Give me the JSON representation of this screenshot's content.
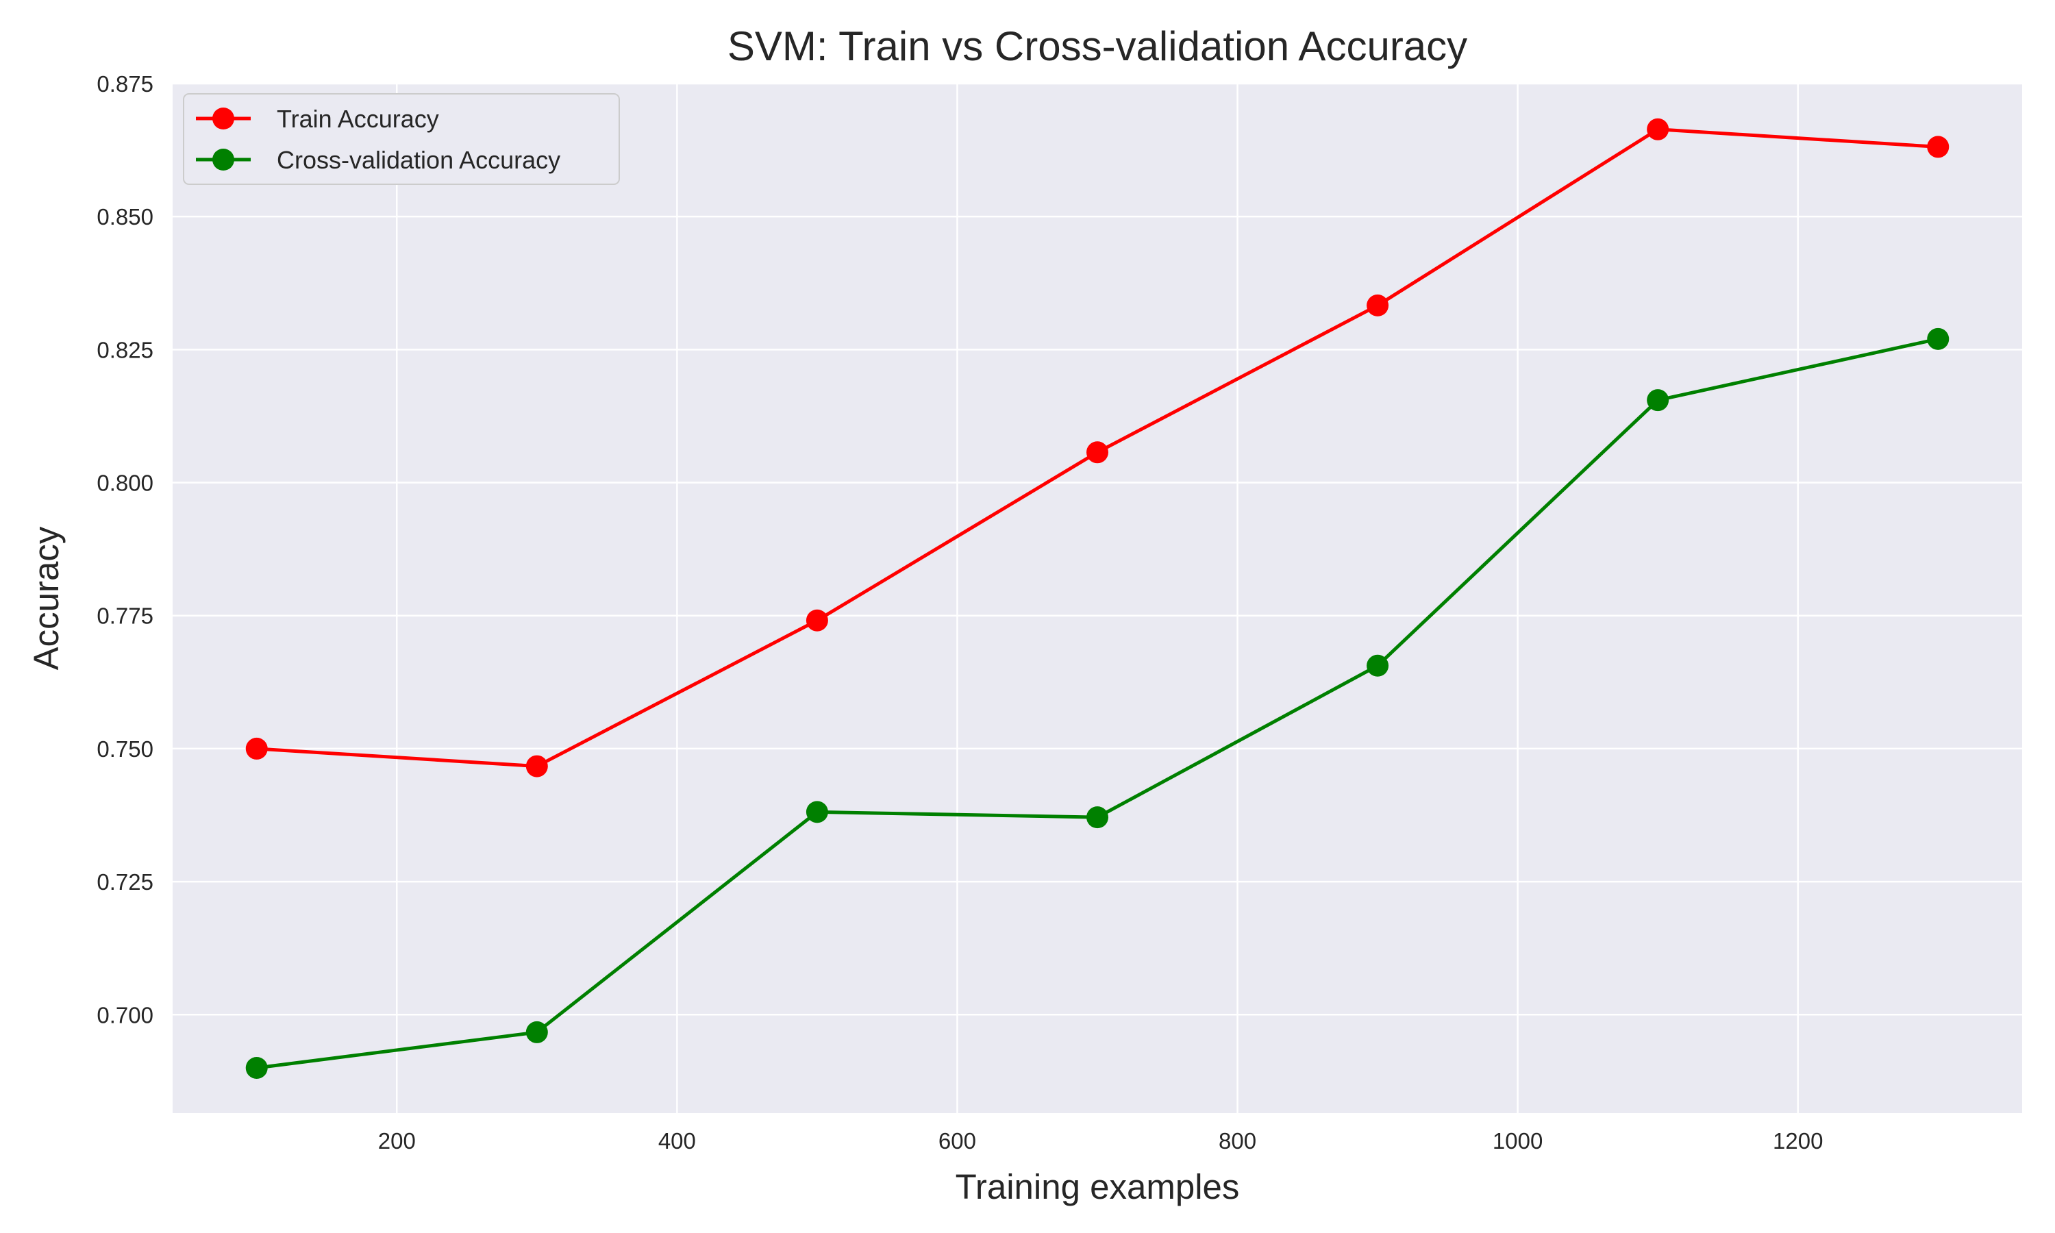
{
  "chart_data": {
    "type": "line",
    "title": "SVM: Train vs Cross-validation Accuracy",
    "xlabel": "Training examples",
    "ylabel": "Accuracy",
    "x": [
      100,
      300,
      500,
      700,
      900,
      1100,
      1300
    ],
    "xlim": [
      40,
      1360
    ],
    "ylim": [
      0.6815,
      0.875
    ],
    "xticks": [
      200,
      400,
      600,
      800,
      1000,
      1200
    ],
    "yticks": [
      0.7,
      0.725,
      0.75,
      0.775,
      0.8,
      0.825,
      0.85,
      0.875
    ],
    "ytick_labels": [
      "0.700",
      "0.725",
      "0.750",
      "0.775",
      "0.800",
      "0.825",
      "0.850",
      "0.875"
    ],
    "grid": true,
    "legend_position": "top-left",
    "background": "#eaeaf2",
    "series": [
      {
        "name": "Train Accuracy",
        "color": "#ff0000",
        "marker": "circle",
        "values": [
          0.75,
          0.7467,
          0.7741,
          0.8057,
          0.8333,
          0.8664,
          0.8631
        ]
      },
      {
        "name": "Cross-validation Accuracy",
        "color": "#008000",
        "marker": "circle",
        "values": [
          0.69,
          0.6967,
          0.7381,
          0.7371,
          0.7656,
          0.8155,
          0.827
        ]
      }
    ]
  }
}
